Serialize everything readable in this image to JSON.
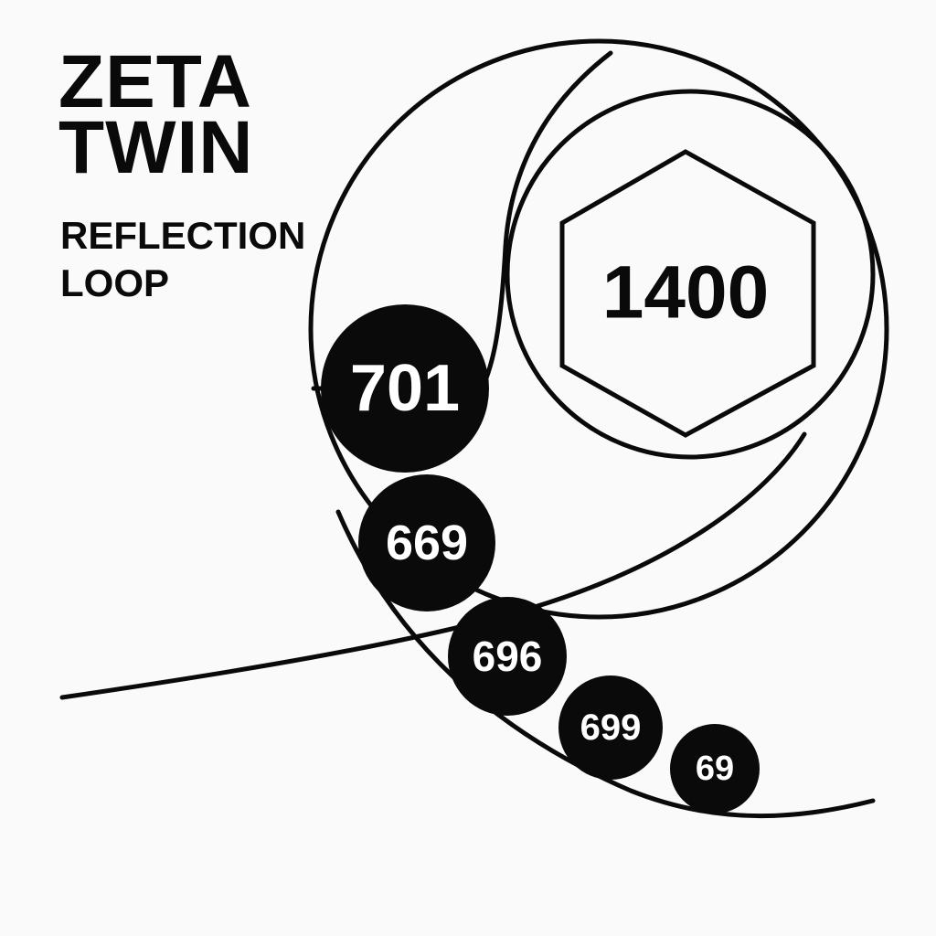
{
  "title": {
    "line1": "ZETA",
    "line2": "TWIN"
  },
  "subtitle": {
    "line1": "REFLECTION",
    "line2": "LOOP"
  },
  "core": {
    "value": "1400",
    "shape": "hexagon"
  },
  "nodes": [
    {
      "value": "701"
    },
    {
      "value": "669"
    },
    {
      "value": "696"
    },
    {
      "value": "699"
    },
    {
      "value": "69"
    }
  ],
  "colors": {
    "ink": "#0a0a0a",
    "background": "#fafafa",
    "node_text": "#ffffff"
  }
}
